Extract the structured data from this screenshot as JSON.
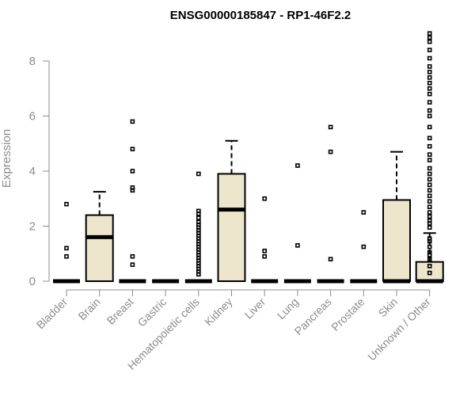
{
  "chart_data": {
    "type": "boxplot",
    "title": "ENSG00000185847 - RP1-46F2.2",
    "xlabel": "",
    "ylabel": "Expression",
    "ylim": [
      0,
      9
    ],
    "yticks": [
      0,
      2,
      4,
      6,
      8
    ],
    "grid": false,
    "colors": {
      "box_fill": "#ede6cc",
      "box_stroke": "#000000",
      "axis": "#8c8c8c"
    },
    "categories": [
      "Bladder",
      "Brain",
      "Breast",
      "Gastric",
      "Hematopoietic cells",
      "Kidney",
      "Liver",
      "Lung",
      "Pancreas",
      "Prostate",
      "Skin",
      "Unknown / Other"
    ],
    "boxes": [
      {
        "category": "Bladder",
        "q1": 0,
        "median": 0,
        "q3": 0,
        "whisker_low": 0,
        "whisker_high": 0,
        "outliers": [
          0.9,
          1.2,
          2.8
        ]
      },
      {
        "category": "Brain",
        "q1": 0,
        "median": 1.6,
        "q3": 2.4,
        "whisker_low": 0,
        "whisker_high": 3.25,
        "outliers": []
      },
      {
        "category": "Breast",
        "q1": 0,
        "median": 0,
        "q3": 0,
        "whisker_low": 0,
        "whisker_high": 0,
        "outliers": [
          0.6,
          0.9,
          3.3,
          3.4,
          4.0,
          4.8,
          5.8
        ]
      },
      {
        "category": "Gastric",
        "q1": 0,
        "median": 0,
        "q3": 0,
        "whisker_low": 0,
        "whisker_high": 0,
        "outliers": []
      },
      {
        "category": "Hematopoietic cells",
        "q1": 0,
        "median": 0,
        "q3": 0,
        "whisker_low": 0,
        "whisker_high": 0,
        "outliers": [
          0.25,
          0.35,
          0.45,
          0.55,
          0.65,
          0.75,
          0.85,
          0.95,
          1.05,
          1.15,
          1.25,
          1.35,
          1.45,
          1.55,
          1.65,
          1.75,
          1.85,
          1.95,
          2.05,
          2.15,
          2.3,
          2.45,
          2.55,
          3.9
        ]
      },
      {
        "category": "Kidney",
        "q1": 0,
        "median": 2.6,
        "q3": 3.9,
        "whisker_low": 0,
        "whisker_high": 5.1,
        "outliers": []
      },
      {
        "category": "Liver",
        "q1": 0,
        "median": 0,
        "q3": 0,
        "whisker_low": 0,
        "whisker_high": 0,
        "outliers": [
          0.9,
          1.1,
          3.0
        ]
      },
      {
        "category": "Lung",
        "q1": 0,
        "median": 0,
        "q3": 0,
        "whisker_low": 0,
        "whisker_high": 0,
        "outliers": [
          1.3,
          4.2
        ]
      },
      {
        "category": "Pancreas",
        "q1": 0,
        "median": 0,
        "q3": 0,
        "whisker_low": 0,
        "whisker_high": 0,
        "outliers": [
          0.8,
          4.7,
          5.6
        ]
      },
      {
        "category": "Prostate",
        "q1": 0,
        "median": 0,
        "q3": 0,
        "whisker_low": 0,
        "whisker_high": 0,
        "outliers": [
          1.25,
          2.5
        ]
      },
      {
        "category": "Skin",
        "q1": 0,
        "median": 0,
        "q3": 2.95,
        "whisker_low": 0,
        "whisker_high": 4.7,
        "outliers": []
      },
      {
        "category": "Unknown / Other",
        "q1": 0,
        "median": 0,
        "q3": 0.7,
        "whisker_low": 0,
        "whisker_high": 1.75,
        "outliers": [
          0.3,
          0.55,
          0.8,
          0.95,
          1.05,
          1.25,
          1.45,
          1.55,
          1.95,
          2.1,
          2.2,
          2.35,
          2.5,
          2.7,
          2.9,
          3.1,
          3.3,
          3.5,
          3.7,
          3.9,
          4.1,
          4.4,
          4.6,
          4.9,
          5.2,
          5.6,
          6.0,
          6.2,
          6.5,
          6.8,
          7.0,
          7.2,
          7.4,
          7.6,
          7.8,
          8.1,
          8.4,
          8.7,
          8.85,
          9.0
        ]
      }
    ]
  }
}
